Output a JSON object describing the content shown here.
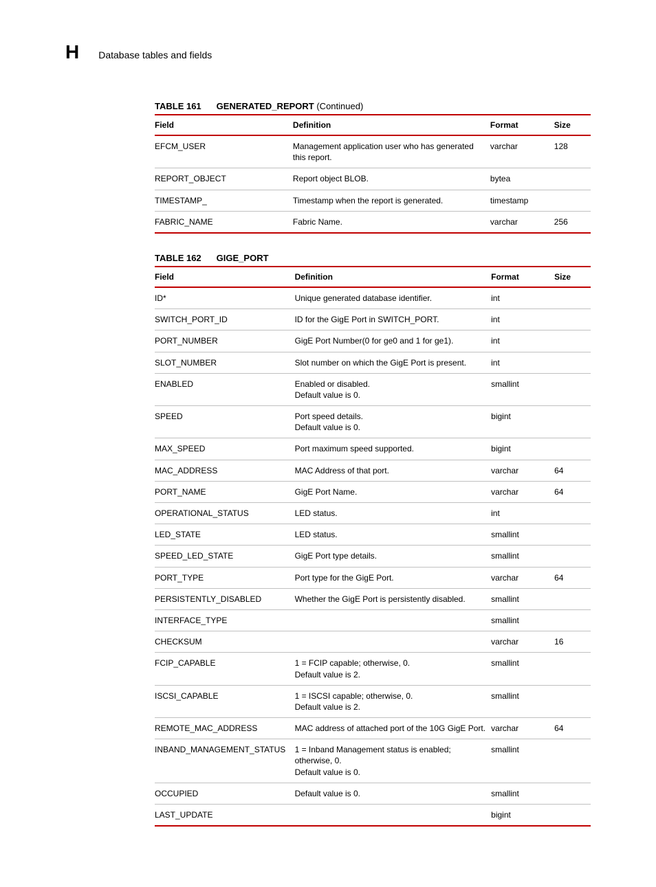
{
  "header": {
    "letter": "H",
    "title": "Database tables and fields"
  },
  "columns": {
    "field": "Field",
    "definition": "Definition",
    "format": "Format",
    "size": "Size"
  },
  "tables": [
    {
      "label": "TABLE 161",
      "name": "GENERATED_REPORT",
      "suffix": " (Continued)",
      "rows": [
        {
          "field": "EFCM_USER",
          "def": [
            "Management application user who has generated this report."
          ],
          "format": "varchar",
          "size": "128"
        },
        {
          "field": "REPORT_OBJECT",
          "def": [
            "Report object BLOB."
          ],
          "format": "bytea",
          "size": ""
        },
        {
          "field": "TIMESTAMP_",
          "def": [
            "Timestamp when the report is generated."
          ],
          "format": "timestamp",
          "size": ""
        },
        {
          "field": "FABRIC_NAME",
          "def": [
            "Fabric Name."
          ],
          "format": "varchar",
          "size": "256"
        }
      ]
    },
    {
      "label": "TABLE 162",
      "name": "GIGE_PORT",
      "suffix": "",
      "rows": [
        {
          "field": "ID*",
          "def": [
            "Unique generated database identifier."
          ],
          "format": "int",
          "size": ""
        },
        {
          "field": "SWITCH_PORT_ID",
          "def": [
            "ID for the GigE Port in SWITCH_PORT."
          ],
          "format": "int",
          "size": ""
        },
        {
          "field": "PORT_NUMBER",
          "def": [
            "GigE Port Number(0 for ge0 and 1 for ge1)."
          ],
          "format": "int",
          "size": ""
        },
        {
          "field": "SLOT_NUMBER",
          "def": [
            "Slot number on which the GigE Port is present."
          ],
          "format": "int",
          "size": ""
        },
        {
          "field": "ENABLED",
          "def": [
            "Enabled or disabled.",
            "Default value is 0."
          ],
          "format": "smallint",
          "size": ""
        },
        {
          "field": "SPEED",
          "def": [
            "Port speed details.",
            "Default value is 0."
          ],
          "format": "bigint",
          "size": ""
        },
        {
          "field": "MAX_SPEED",
          "def": [
            "Port maximum speed supported."
          ],
          "format": "bigint",
          "size": ""
        },
        {
          "field": "MAC_ADDRESS",
          "def": [
            "MAC Address of that port."
          ],
          "format": "varchar",
          "size": "64"
        },
        {
          "field": "PORT_NAME",
          "def": [
            "GigE Port Name."
          ],
          "format": "varchar",
          "size": "64"
        },
        {
          "field": "OPERATIONAL_STATUS",
          "def": [
            "LED status."
          ],
          "format": "int",
          "size": ""
        },
        {
          "field": "LED_STATE",
          "def": [
            "LED status."
          ],
          "format": "smallint",
          "size": ""
        },
        {
          "field": "SPEED_LED_STATE",
          "def": [
            "GigE Port type details."
          ],
          "format": "smallint",
          "size": ""
        },
        {
          "field": "PORT_TYPE",
          "def": [
            "Port type for the GigE Port."
          ],
          "format": "varchar",
          "size": "64"
        },
        {
          "field": "PERSISTENTLY_DISABLED",
          "def": [
            "Whether the GigE Port is persistently disabled."
          ],
          "format": "smallint",
          "size": ""
        },
        {
          "field": "INTERFACE_TYPE",
          "def": [
            ""
          ],
          "format": "smallint",
          "size": ""
        },
        {
          "field": "CHECKSUM",
          "def": [
            ""
          ],
          "format": "varchar",
          "size": "16"
        },
        {
          "field": "FCIP_CAPABLE",
          "def": [
            "1 = FCIP capable; otherwise, 0.",
            "Default value is 2."
          ],
          "format": "smallint",
          "size": ""
        },
        {
          "field": "ISCSI_CAPABLE",
          "def": [
            "1 = ISCSI capable; otherwise, 0.",
            "Default value is 2."
          ],
          "format": "smallint",
          "size": ""
        },
        {
          "field": "REMOTE_MAC_ADDRESS",
          "def": [
            "MAC address of attached port of the 10G GigE Port."
          ],
          "format": "varchar",
          "size": "64"
        },
        {
          "field": "INBAND_MANAGEMENT_STATUS",
          "def": [
            "1 = Inband Management status is enabled; otherwise, 0.",
            "Default value is 0."
          ],
          "format": "smallint",
          "size": ""
        },
        {
          "field": "OCCUPIED",
          "def": [
            "Default value is 0."
          ],
          "format": "smallint",
          "size": ""
        },
        {
          "field": "LAST_UPDATE",
          "def": [
            ""
          ],
          "format": "bigint",
          "size": ""
        }
      ]
    }
  ]
}
